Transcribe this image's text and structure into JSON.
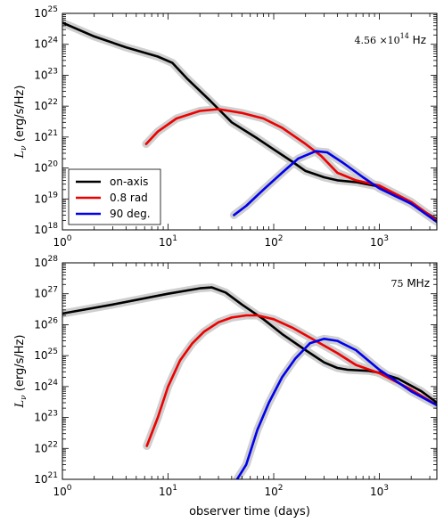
{
  "colors": {
    "on_axis": "#000000",
    "rad08": "#ee0000",
    "deg90": "#0000ee",
    "band": "#cfcfcf"
  },
  "chart_data": [
    {
      "type": "line",
      "annotation": {
        "mantissa": "4.56",
        "exponent": "14",
        "unit": "Hz"
      },
      "ylabel": "(erg/s/Hz)",
      "ylabel_symbol": "L",
      "ylabel_sub": "ν",
      "xlog": true,
      "ylog": true,
      "xlim": [
        1,
        3500
      ],
      "ylim": [
        1e+18,
        1e+25
      ],
      "x_ticks": [
        {
          "base": "10",
          "exp": "0",
          "v": 1
        },
        {
          "base": "10",
          "exp": "1",
          "v": 10
        },
        {
          "base": "10",
          "exp": "2",
          "v": 100
        },
        {
          "base": "10",
          "exp": "3",
          "v": 1000
        }
      ],
      "y_ticks": [
        {
          "base": "10",
          "exp": "18",
          "v": 1e+18
        },
        {
          "base": "10",
          "exp": "19",
          "v": 1e+19
        },
        {
          "base": "10",
          "exp": "20",
          "v": 1e+20
        },
        {
          "base": "10",
          "exp": "21",
          "v": 1e+21
        },
        {
          "base": "10",
          "exp": "22",
          "v": 1e+22
        },
        {
          "base": "10",
          "exp": "23",
          "v": 1e+23
        },
        {
          "base": "10",
          "exp": "24",
          "v": 1e+24
        },
        {
          "base": "10",
          "exp": "25",
          "v": 1e+25
        }
      ],
      "legend": {
        "position": "lower-left",
        "entries": [
          "on-axis",
          "0.8 rad",
          "90 deg."
        ]
      },
      "series": [
        {
          "name": "on-axis",
          "color_key": "on_axis",
          "x": [
            1,
            2,
            4,
            8,
            11,
            15,
            25,
            40,
            70,
            100,
            150,
            200,
            300,
            400,
            600,
            1000,
            1500,
            2000,
            3500
          ],
          "y": [
            5e+24,
            1.8e+24,
            8e+23,
            4e+23,
            2.5e+23,
            8e+22,
            1.5e+22,
            3e+21,
            9e+20,
            4e+20,
            1.6e+20,
            8e+19,
            5e+19,
            4e+19,
            3.5e+19,
            2.5e+19,
            1.2e+19,
            7e+18,
            2.2e+18
          ]
        },
        {
          "name": "0.8 rad",
          "color_key": "rad08",
          "x": [
            6.2,
            8,
            12,
            20,
            30,
            50,
            80,
            120,
            200,
            280,
            400,
            600,
            1000,
            2000,
            3500
          ],
          "y": [
            6e+20,
            1.5e+21,
            4e+21,
            7e+21,
            8e+21,
            6e+21,
            4e+21,
            2e+21,
            6e+20,
            2.5e+20,
            7e+19,
            4e+19,
            2.7e+19,
            8e+18,
            2e+18
          ]
        },
        {
          "name": "90 deg.",
          "color_key": "deg90",
          "x": [
            42,
            55,
            80,
            120,
            170,
            250,
            320,
            450,
            700,
            1000,
            2000,
            3500
          ],
          "y": [
            3e+18,
            6e+18,
            2e+19,
            7e+19,
            2e+20,
            3.5e+20,
            3.2e+20,
            1.5e+20,
            5e+19,
            2.2e+19,
            7e+18,
            1.8e+18
          ]
        }
      ]
    },
    {
      "type": "line",
      "annotation": {
        "mantissa": "75",
        "exponent": "",
        "unit": "MHz"
      },
      "xlabel": "observer time (days)",
      "ylabel": "(erg/s/Hz)",
      "ylabel_symbol": "L",
      "ylabel_sub": "ν",
      "xlog": true,
      "ylog": true,
      "xlim": [
        1,
        3500
      ],
      "ylim": [
        1e+21,
        1e+28
      ],
      "x_ticks": [
        {
          "base": "10",
          "exp": "0",
          "v": 1
        },
        {
          "base": "10",
          "exp": "1",
          "v": 10
        },
        {
          "base": "10",
          "exp": "2",
          "v": 100
        },
        {
          "base": "10",
          "exp": "3",
          "v": 1000
        }
      ],
      "y_ticks": [
        {
          "base": "10",
          "exp": "21",
          "v": 1e+21
        },
        {
          "base": "10",
          "exp": "22",
          "v": 1e+22
        },
        {
          "base": "10",
          "exp": "23",
          "v": 1e+23
        },
        {
          "base": "10",
          "exp": "24",
          "v": 1e+24
        },
        {
          "base": "10",
          "exp": "25",
          "v": 1e+25
        },
        {
          "base": "10",
          "exp": "26",
          "v": 1e+26
        },
        {
          "base": "10",
          "exp": "27",
          "v": 1e+27
        },
        {
          "base": "10",
          "exp": "28",
          "v": 1e+28
        }
      ],
      "series": [
        {
          "name": "on-axis",
          "color_key": "on_axis",
          "x": [
            1,
            3,
            10,
            20,
            26,
            35,
            50,
            80,
            120,
            200,
            300,
            400,
            500,
            800,
            1000,
            1500,
            2500,
            3500
          ],
          "y": [
            2.3e+26,
            4.5e+26,
            1e+27,
            1.5e+27,
            1.6e+27,
            1.1e+27,
            4.5e+26,
            1.5e+26,
            5e+25,
            1.5e+25,
            6e+24,
            4e+24,
            3.5e+24,
            3.2e+24,
            2.8e+24,
            1.8e+24,
            7e+23,
            3e+23
          ]
        },
        {
          "name": "0.8 rad",
          "color_key": "rad08",
          "x": [
            6.3,
            8,
            10,
            13,
            17,
            22,
            30,
            40,
            55,
            70,
            100,
            150,
            250,
            400,
            600,
            1000,
            2000,
            3500
          ],
          "y": [
            1.2e+22,
            1e+23,
            1e+24,
            7e+24,
            2.5e+25,
            6e+25,
            1.2e+26,
            1.7e+26,
            2e+26,
            2e+26,
            1.5e+26,
            8e+25,
            3e+25,
            1.2e+25,
            5e+24,
            2.7e+24,
            8e+23,
            2.5e+23
          ]
        },
        {
          "name": "90 deg.",
          "color_key": "deg90",
          "x": [
            45,
            55,
            70,
            90,
            120,
            160,
            220,
            300,
            400,
            600,
            1000,
            2000,
            3500
          ],
          "y": [
            1e+21,
            3e+21,
            4e+22,
            3e+23,
            2e+24,
            8e+24,
            2.5e+25,
            3.5e+25,
            3e+25,
            1.5e+25,
            3.5e+24,
            7e+23,
            2.5e+23
          ]
        }
      ]
    }
  ]
}
